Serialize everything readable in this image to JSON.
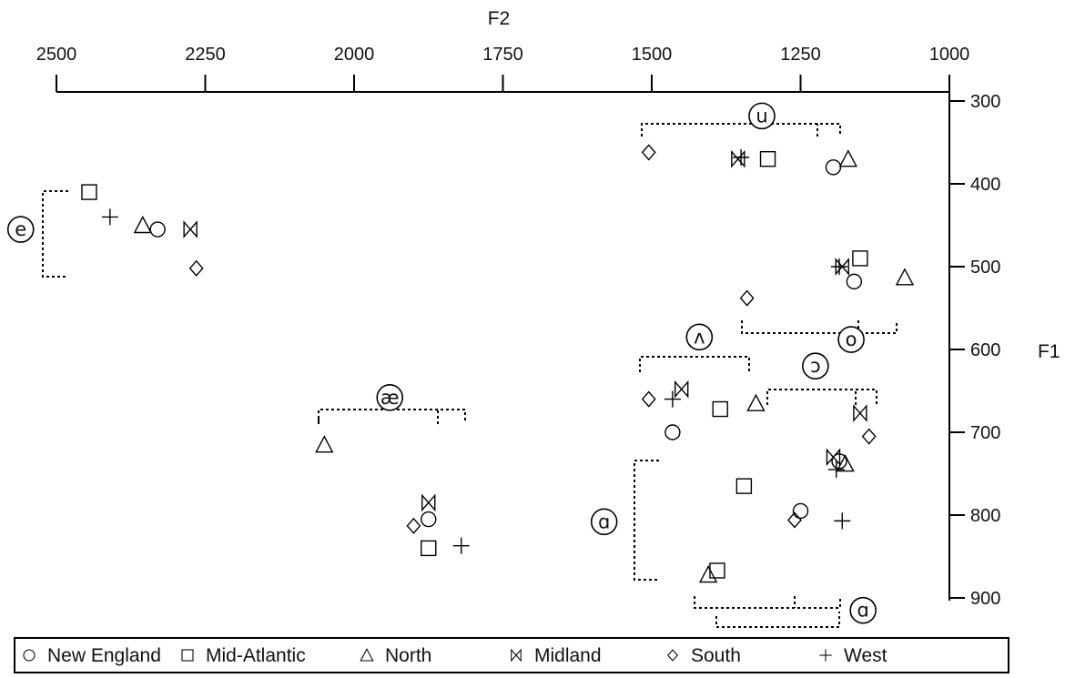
{
  "chart_data": {
    "type": "scatter",
    "title": "",
    "xlabel": "F2",
    "ylabel": "F1",
    "x_axis_position": "top",
    "y_axis_position": "right",
    "x_reversed": true,
    "y_reversed": true,
    "xlim": [
      2500,
      1000
    ],
    "ylim": [
      300,
      900
    ],
    "x_ticks": [
      2500,
      2250,
      2000,
      1750,
      1500,
      1250,
      1000
    ],
    "y_ticks": [
      300,
      400,
      500,
      600,
      700,
      800,
      900
    ],
    "x_tick_labels": [
      "2500",
      "2250",
      "2000",
      "1750",
      "1500",
      "1250",
      "1000"
    ],
    "y_tick_labels": [
      "300",
      "400",
      "500",
      "600",
      "700",
      "800",
      "900"
    ],
    "grid": false,
    "legend_position": "bottom",
    "series": [
      {
        "name": "New England",
        "marker": "circle",
        "points": [
          [
            1195,
            380
          ],
          [
            2330,
            455
          ],
          [
            1160,
            518
          ],
          [
            1465,
            700
          ],
          [
            1185,
            735
          ],
          [
            1250,
            795
          ],
          [
            1875,
            805
          ]
        ]
      },
      {
        "name": "Mid-Atlantic",
        "marker": "square",
        "points": [
          [
            1305,
            370
          ],
          [
            2445,
            410
          ],
          [
            1150,
            490
          ],
          [
            1385,
            672
          ],
          [
            1345,
            765
          ],
          [
            1875,
            840
          ],
          [
            1390,
            867
          ]
        ]
      },
      {
        "name": "North",
        "marker": "triangle",
        "points": [
          [
            1170,
            370
          ],
          [
            2355,
            450
          ],
          [
            1075,
            513
          ],
          [
            1325,
            665
          ],
          [
            2050,
            715
          ],
          [
            1175,
            738
          ],
          [
            1405,
            872
          ]
        ]
      },
      {
        "name": "Midland",
        "marker": "bowtie",
        "points": [
          [
            1355,
            370
          ],
          [
            2275,
            455
          ],
          [
            1180,
            500
          ],
          [
            1450,
            648
          ],
          [
            1150,
            677
          ],
          [
            1195,
            730
          ],
          [
            1875,
            785
          ]
        ]
      },
      {
        "name": "South",
        "marker": "diamond",
        "points": [
          [
            1505,
            362
          ],
          [
            2265,
            502
          ],
          [
            1340,
            538
          ],
          [
            1505,
            660
          ],
          [
            1135,
            705
          ],
          [
            1260,
            806
          ],
          [
            1900,
            813
          ]
        ]
      },
      {
        "name": "West",
        "marker": "plus",
        "points": [
          [
            1350,
            368
          ],
          [
            2410,
            440
          ],
          [
            1185,
            500
          ],
          [
            1465,
            660
          ],
          [
            1190,
            745
          ],
          [
            1180,
            807
          ],
          [
            1820,
            837
          ]
        ]
      }
    ],
    "vowel_labels": [
      {
        "label": "u",
        "x": 1315,
        "y": 318
      },
      {
        "label": "e",
        "x": 2560,
        "y": 455
      },
      {
        "label": "o",
        "x": 1165,
        "y": 588
      },
      {
        "label": "ʌ",
        "x": 1420,
        "y": 585
      },
      {
        "label": "ɔ",
        "x": 1225,
        "y": 620
      },
      {
        "label": "æ",
        "x": 1940,
        "y": 658
      },
      {
        "label": "ɑ",
        "x": 1580,
        "y": 808
      },
      {
        "label": "ɑ",
        "x": 1145,
        "y": 915
      }
    ]
  }
}
